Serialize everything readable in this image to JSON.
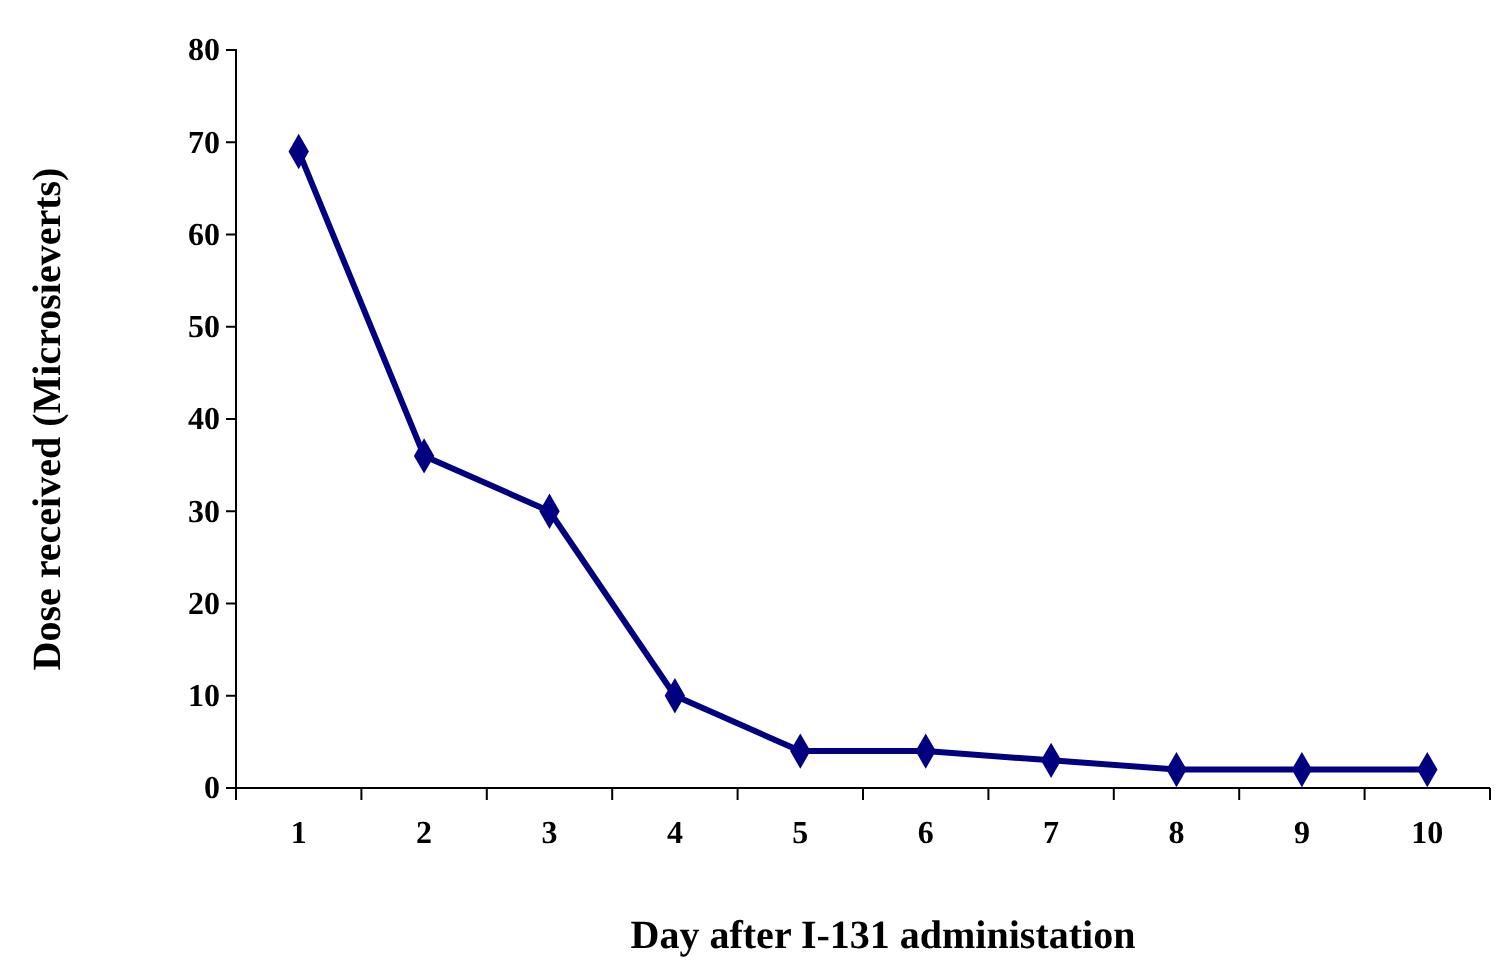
{
  "chart_data": {
    "type": "line",
    "xlabel": "Day after I-131 administation",
    "ylabel": "Dose received (Microsieverts)",
    "categories": [
      "1",
      "2",
      "3",
      "4",
      "5",
      "6",
      "7",
      "8",
      "9",
      "10"
    ],
    "series": [
      {
        "color": "#000080",
        "values": [
          69,
          36,
          30,
          10,
          4,
          4,
          3,
          2,
          2,
          2
        ]
      }
    ],
    "ylim": [
      0,
      80
    ],
    "yticks": [
      0,
      10,
      20,
      30,
      40,
      50,
      60,
      70,
      80
    ],
    "marker": "diamond",
    "line_style": "solid",
    "grid": false
  }
}
